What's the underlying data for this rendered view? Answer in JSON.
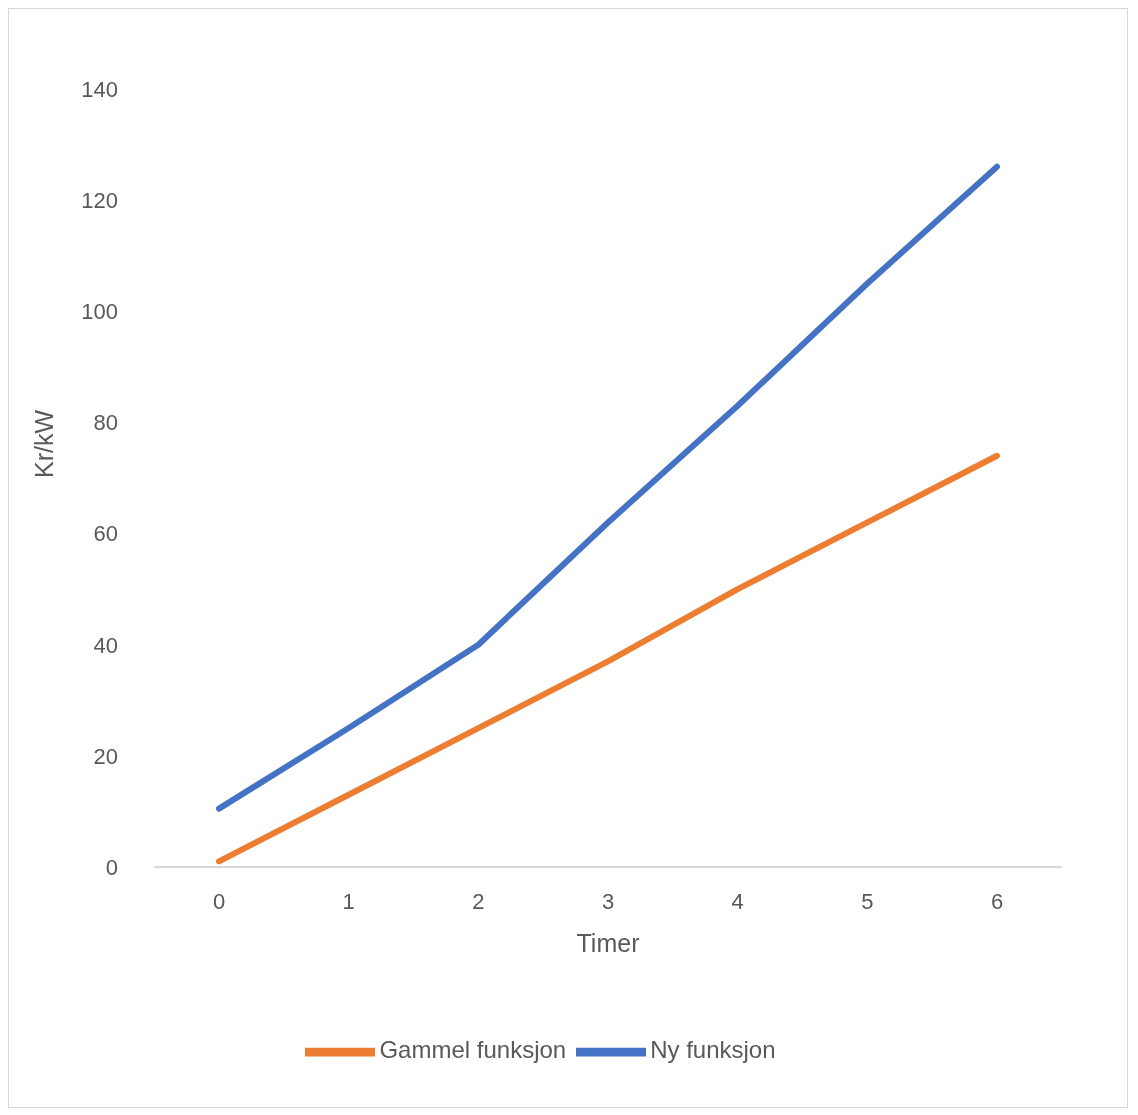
{
  "chart_data": {
    "type": "line",
    "xlabel": "Timer",
    "ylabel": "Kr/kW",
    "categories": [
      "0",
      "1",
      "2",
      "3",
      "4",
      "5",
      "6"
    ],
    "series": [
      {
        "name": "Ny funksjon",
        "color": "#4472c4",
        "values": [
          10.5,
          25,
          40,
          62,
          83,
          105,
          126
        ]
      },
      {
        "name": "Gammel funksjon",
        "color": "#ed7d31",
        "values": [
          1,
          13,
          25,
          37,
          50,
          62,
          74
        ]
      }
    ],
    "ylim": [
      0,
      140
    ],
    "yticks": [
      0,
      20,
      40,
      60,
      80,
      100,
      120,
      140
    ],
    "grid": false,
    "legend": "bottom",
    "marker": "none",
    "line_style": "solid"
  }
}
